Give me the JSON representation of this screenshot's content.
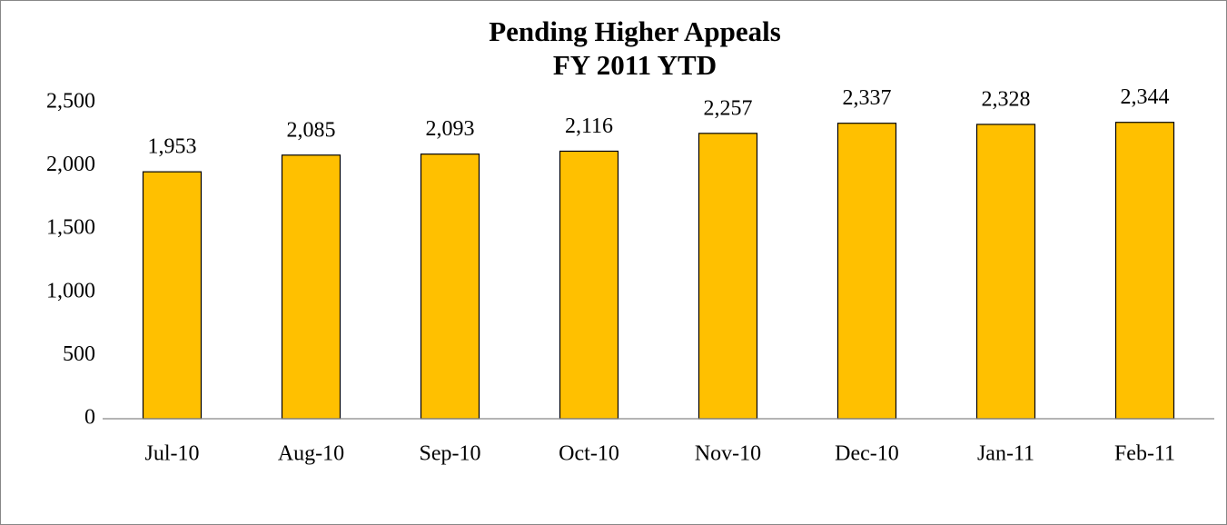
{
  "chart_data": {
    "type": "bar",
    "title": "Pending Higher Appeals",
    "subtitle": "FY 2011 YTD",
    "categories": [
      "Jul-10",
      "Aug-10",
      "Sep-10",
      "Oct-10",
      "Nov-10",
      "Dec-10",
      "Jan-11",
      "Feb-11"
    ],
    "values": [
      1953,
      2085,
      2093,
      2116,
      2257,
      2337,
      2328,
      2344
    ],
    "value_labels": [
      "1,953",
      "2,085",
      "2,093",
      "2,116",
      "2,257",
      "2,337",
      "2,328",
      "2,344"
    ],
    "color": "#ffc000",
    "ylim": [
      0,
      2500
    ],
    "yticks": [
      0,
      500,
      {
        "value": 1000,
        "label": "1,000"
      },
      {
        "value": 1500,
        "label": "1,500"
      },
      {
        "value": 2000,
        "label": "2,000"
      },
      {
        "value": 2500,
        "label": "2,500"
      }
    ],
    "grid": false
  }
}
